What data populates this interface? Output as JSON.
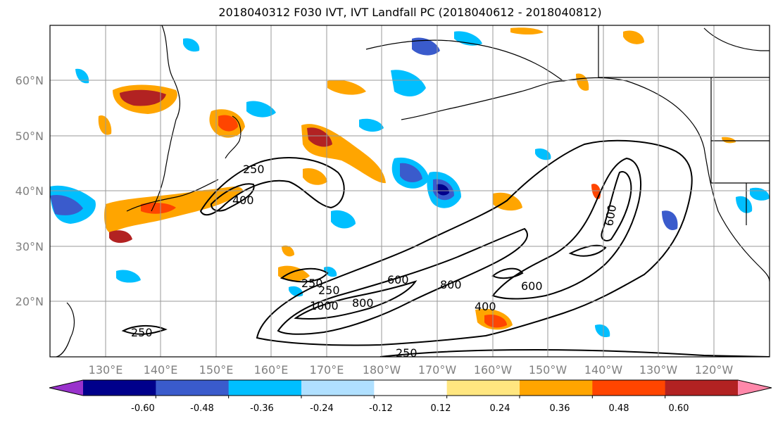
{
  "title": "2018040312 F030 IVT, IVT Landfall PC (2018040612 - 2018040812)",
  "map": {
    "lon_labels": [
      "130°E",
      "140°E",
      "150°E",
      "160°E",
      "170°E",
      "180°W",
      "170°W",
      "160°W",
      "150°W",
      "140°W",
      "130°W",
      "120°W"
    ],
    "lat_labels": [
      "60°N",
      "50°N",
      "40°N",
      "30°N",
      "20°N"
    ],
    "contour_labels": [
      "250",
      "400",
      "250",
      "250",
      "1000",
      "800",
      "600",
      "800",
      "400",
      "600",
      "600",
      "250",
      "250"
    ],
    "contour_color": "#000000",
    "grid": true
  },
  "colorbar": {
    "colors": [
      "#9932cc",
      "#00008b",
      "#3a5bcc",
      "#00bfff",
      "#b0e0ff",
      "#ffffff",
      "#ffe680",
      "#ffa500",
      "#ff4500",
      "#b22222",
      "#ff88aa"
    ],
    "tick_labels": [
      "-0.60",
      "-0.48",
      "-0.36",
      "-0.24",
      "-0.12",
      "0.12",
      "0.24",
      "0.36",
      "0.48",
      "0.60"
    ],
    "extend": "both"
  }
}
